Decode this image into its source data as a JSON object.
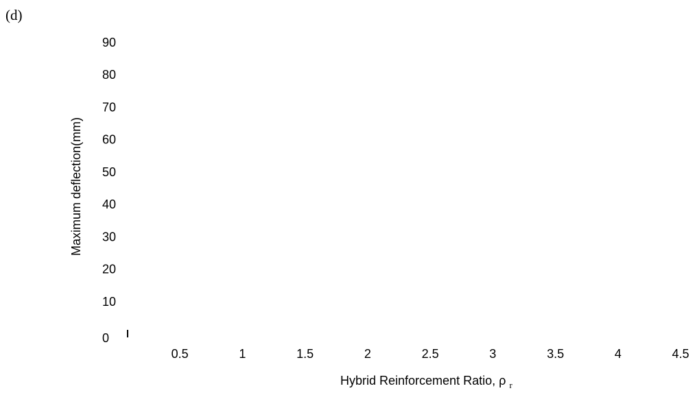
{
  "panel_label": "(d)",
  "chart_data": {
    "type": "scatter",
    "title": "",
    "xlabel": "Hybrid Reinforcement Ratio, ρ",
    "xlabel_subscript": "r",
    "ylabel": "Maximum deflection(mm)",
    "x_ticks": [
      "0",
      "0.5",
      "1",
      "1.5",
      "2",
      "2.5",
      "3",
      "3.5",
      "4",
      "4.5"
    ],
    "y_ticks": [
      "0",
      "10",
      "20",
      "30",
      "40",
      "50",
      "60",
      "70",
      "80",
      "90"
    ],
    "xlim": [
      0,
      4.5
    ],
    "ylim": [
      0,
      90
    ],
    "grid": false,
    "series": []
  }
}
